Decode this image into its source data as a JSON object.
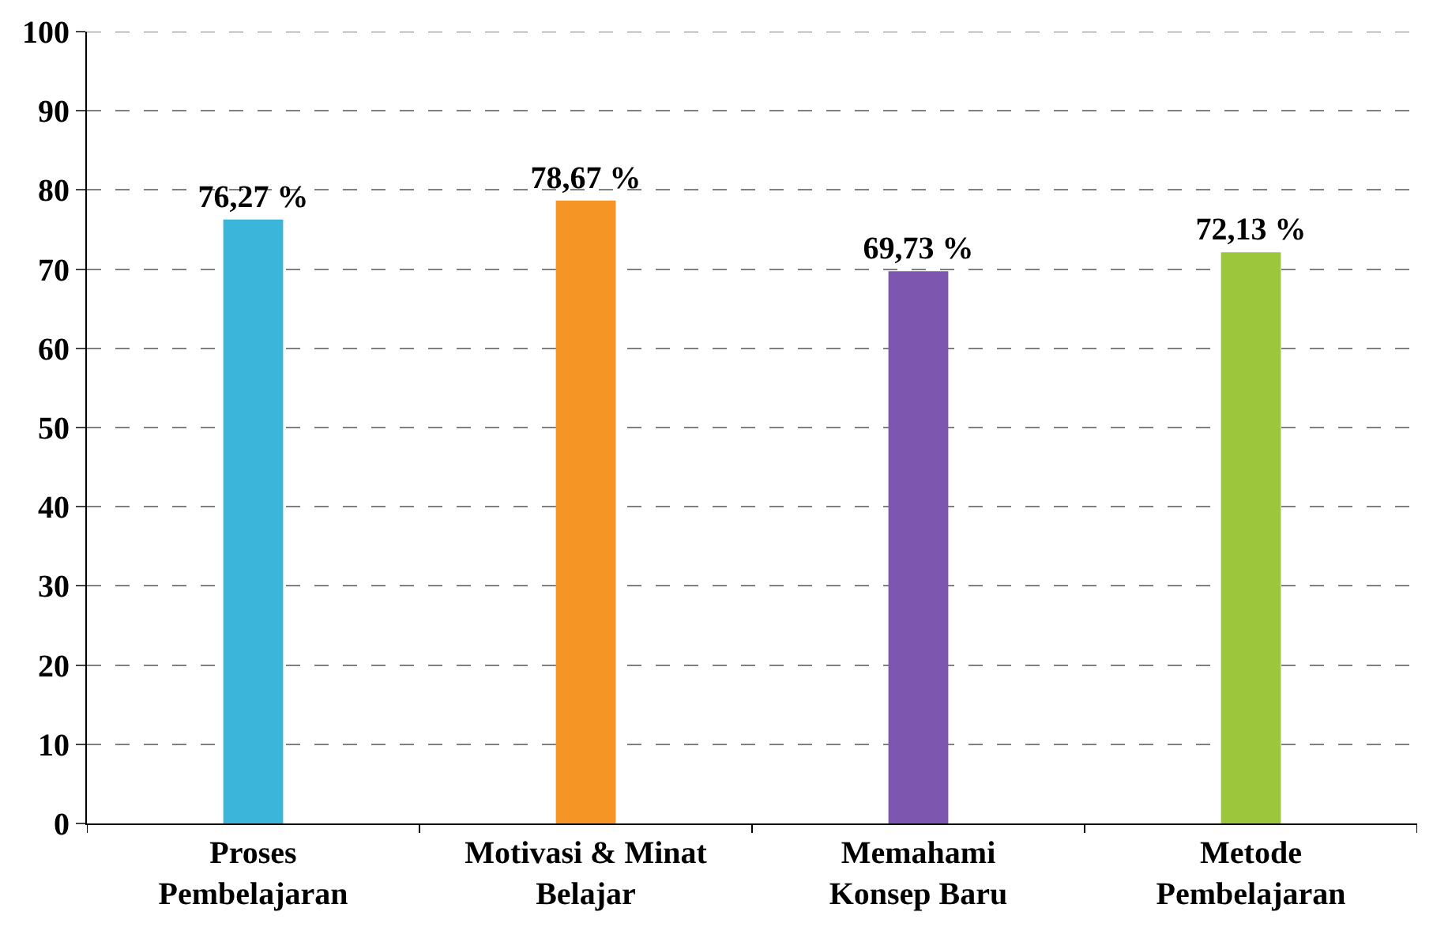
{
  "chart_data": {
    "type": "bar",
    "categories": [
      "Proses\nPembelajaran",
      "Motivasi & Minat\nBelajar",
      "Memahami\nKonsep Baru",
      "Metode\nPembelajaran"
    ],
    "values": [
      76.27,
      78.67,
      69.73,
      72.13
    ],
    "colors": [
      "#3bb6da",
      "#f59526",
      "#7d56b0",
      "#9cc63c"
    ],
    "value_labels": [
      "76,27 %",
      "78,67 %",
      "69,73 %",
      "72,13 %"
    ],
    "ylim": [
      0,
      100
    ],
    "yticks": [
      0,
      10,
      20,
      30,
      40,
      50,
      60,
      70,
      80,
      90,
      100
    ],
    "grid": "y"
  }
}
